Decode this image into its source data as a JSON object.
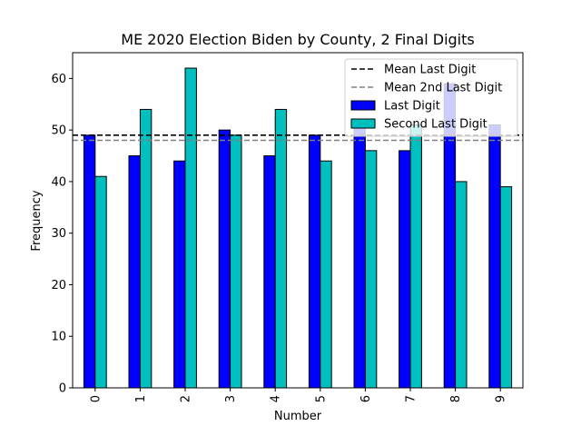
{
  "chart_data": {
    "type": "bar",
    "title": "ME 2020 Election Biden by County, 2 Final Digits",
    "xlabel": "Number",
    "ylabel": "Frequency",
    "categories": [
      "0",
      "1",
      "2",
      "3",
      "4",
      "5",
      "6",
      "7",
      "8",
      "9"
    ],
    "ylim": [
      0,
      65
    ],
    "yticks": [
      0,
      10,
      20,
      30,
      40,
      50,
      60
    ],
    "grid": false,
    "legend_position": "top-right",
    "series": [
      {
        "name": "Last Digit",
        "color": "#0000ff",
        "values": [
          49,
          45,
          44,
          50,
          45,
          49,
          52,
          46,
          59,
          51
        ]
      },
      {
        "name": "Second Last Digit",
        "color": "#00bfbf",
        "values": [
          41,
          54,
          62,
          49,
          54,
          44,
          46,
          51,
          40,
          39
        ]
      }
    ],
    "reference_lines": [
      {
        "name": "Mean Last Digit",
        "value": 49.0,
        "color": "#000000",
        "style": "dashed"
      },
      {
        "name": "Mean 2nd Last Digit",
        "value": 48.0,
        "color": "#808080",
        "style": "dashed"
      }
    ]
  }
}
